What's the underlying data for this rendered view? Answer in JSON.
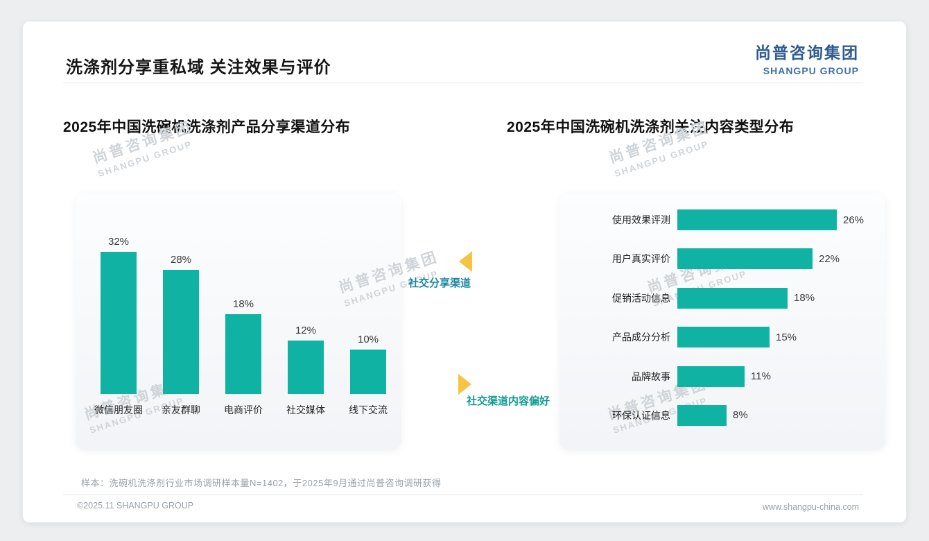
{
  "page": {
    "title": "洗涤剂分享重私域 关注效果与评价",
    "logo": {
      "cn": "尚普咨询集团",
      "en": "SHANGPU GROUP"
    },
    "watermark": {
      "cn": "尚普咨询集团",
      "en": "SHANGPU GROUP"
    },
    "note": "样本：洗碗机洗涤剂行业市场调研样本量N=1402，于2025年9月通过尚普咨询调研获得",
    "footer_left": "©2025.11 SHANGPU GROUP",
    "footer_right": "www.shangpu-china.com"
  },
  "annotations": {
    "left_label": "社交分享渠道",
    "right_label": "社交渠道内容偏好"
  },
  "colors": {
    "bar": "#10b3a3",
    "accent_yellow": "#f6c343",
    "annotation_left": "#1d86a6",
    "annotation_right": "#0f9d8f",
    "logo_blue": "#2f5b8f"
  },
  "chart_data": [
    {
      "type": "bar",
      "title": "2025年中国洗碗机洗涤剂产品分享渠道分布",
      "categories": [
        "微信朋友圈",
        "亲友群聊",
        "电商评价",
        "社交媒体",
        "线下交流"
      ],
      "values": [
        32,
        28,
        18,
        12,
        10
      ],
      "unit": "%",
      "xlabel": "",
      "ylabel": "",
      "ylim": [
        0,
        35
      ],
      "grid": false,
      "legend": false
    },
    {
      "type": "bar",
      "orientation": "horizontal",
      "title": "2025年中国洗碗机洗涤剂关注内容类型分布",
      "categories": [
        "使用效果评测",
        "用户真实评价",
        "促销活动信息",
        "产品成分分析",
        "品牌故事",
        "环保认证信息"
      ],
      "values": [
        26,
        22,
        18,
        15,
        11,
        8
      ],
      "unit": "%",
      "xlabel": "",
      "ylabel": "",
      "xlim": [
        0,
        30
      ],
      "grid": false,
      "legend": false
    }
  ]
}
